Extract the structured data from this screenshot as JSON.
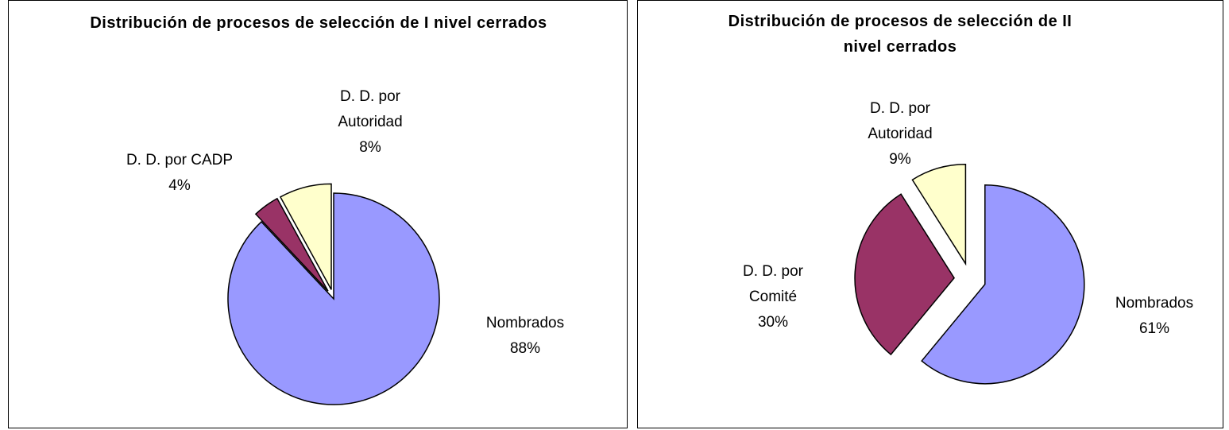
{
  "chart_data": [
    {
      "type": "pie",
      "title": "Distribución de procesos de selección de I nivel cerrados",
      "categories": [
        "Nombrados",
        "D. D. por CADP",
        "D. D. por Autoridad"
      ],
      "values": [
        88,
        4,
        8
      ],
      "value_labels": [
        "88%",
        "4%",
        "8%"
      ],
      "colors": [
        "#9999ff",
        "#993366",
        "#ffffcc"
      ]
    },
    {
      "type": "pie",
      "title": "Distribución de procesos de selección de II nivel cerrados",
      "categories": [
        "Nombrados",
        "D. D. por Comité",
        "D. D. por Autoridad"
      ],
      "values": [
        61,
        30,
        9
      ],
      "value_labels": [
        "61%",
        "30%",
        "9%"
      ],
      "colors": [
        "#9999ff",
        "#993366",
        "#ffffcc"
      ]
    }
  ]
}
